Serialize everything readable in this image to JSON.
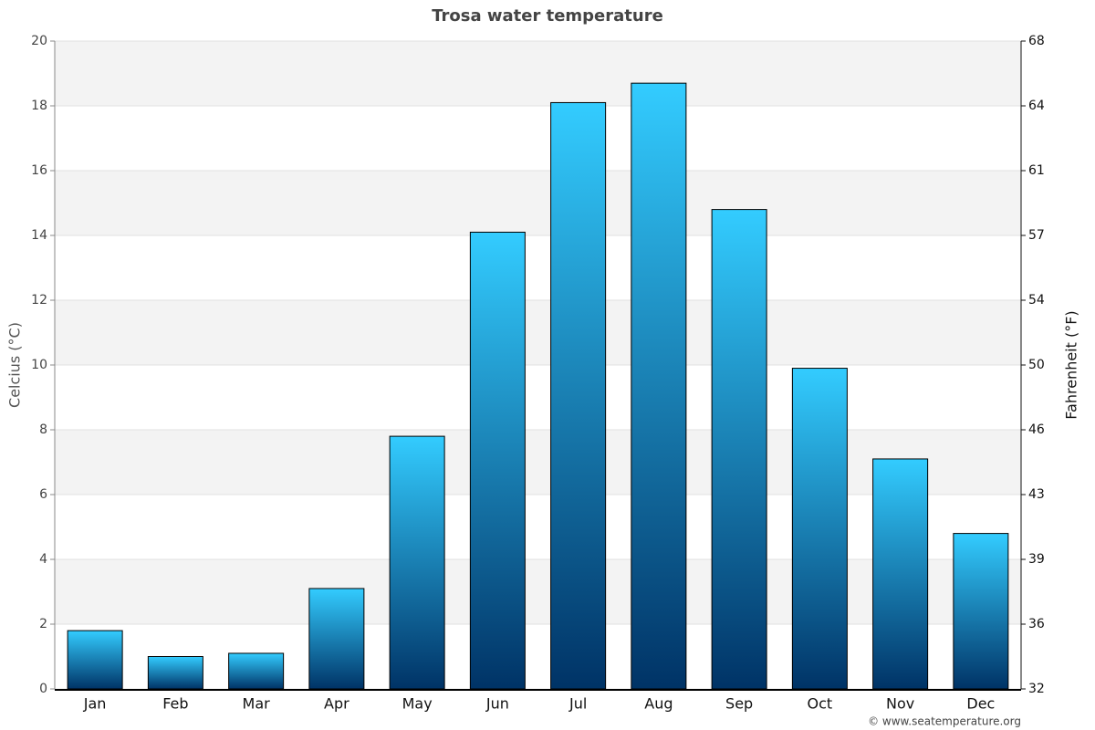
{
  "chart_data": {
    "type": "bar",
    "title": "Trosa water temperature",
    "y_label": "Celcius (°C)",
    "y2_label": "Fahrenheit (°F)",
    "categories": [
      "Jan",
      "Feb",
      "Mar",
      "Apr",
      "May",
      "Jun",
      "Jul",
      "Aug",
      "Sep",
      "Oct",
      "Nov",
      "Dec"
    ],
    "values": [
      1.8,
      1.0,
      1.1,
      3.1,
      7.8,
      14.1,
      18.1,
      18.7,
      14.8,
      9.9,
      7.1,
      4.8
    ],
    "gradient": [
      "#33ccff",
      "#003366"
    ],
    "ylim": [
      0,
      20
    ],
    "yticks": [
      0,
      2,
      4,
      6,
      8,
      10,
      12,
      14,
      16,
      18,
      20
    ],
    "y2lim": [
      32,
      68
    ],
    "y2ticks": [
      32,
      {
        "value": 35.6,
        "label": "36"
      },
      {
        "value": 39.2,
        "label": "39"
      },
      {
        "value": 42.8,
        "label": "43"
      },
      {
        "value": 46.4,
        "label": "46"
      },
      50,
      {
        "value": 53.6,
        "label": "54"
      },
      {
        "value": 57.2,
        "label": "57"
      },
      {
        "value": 60.8,
        "label": "61"
      },
      {
        "value": 64.4,
        "label": "64"
      },
      68
    ],
    "grid": true,
    "credit": "© www.seatemperature.org"
  }
}
